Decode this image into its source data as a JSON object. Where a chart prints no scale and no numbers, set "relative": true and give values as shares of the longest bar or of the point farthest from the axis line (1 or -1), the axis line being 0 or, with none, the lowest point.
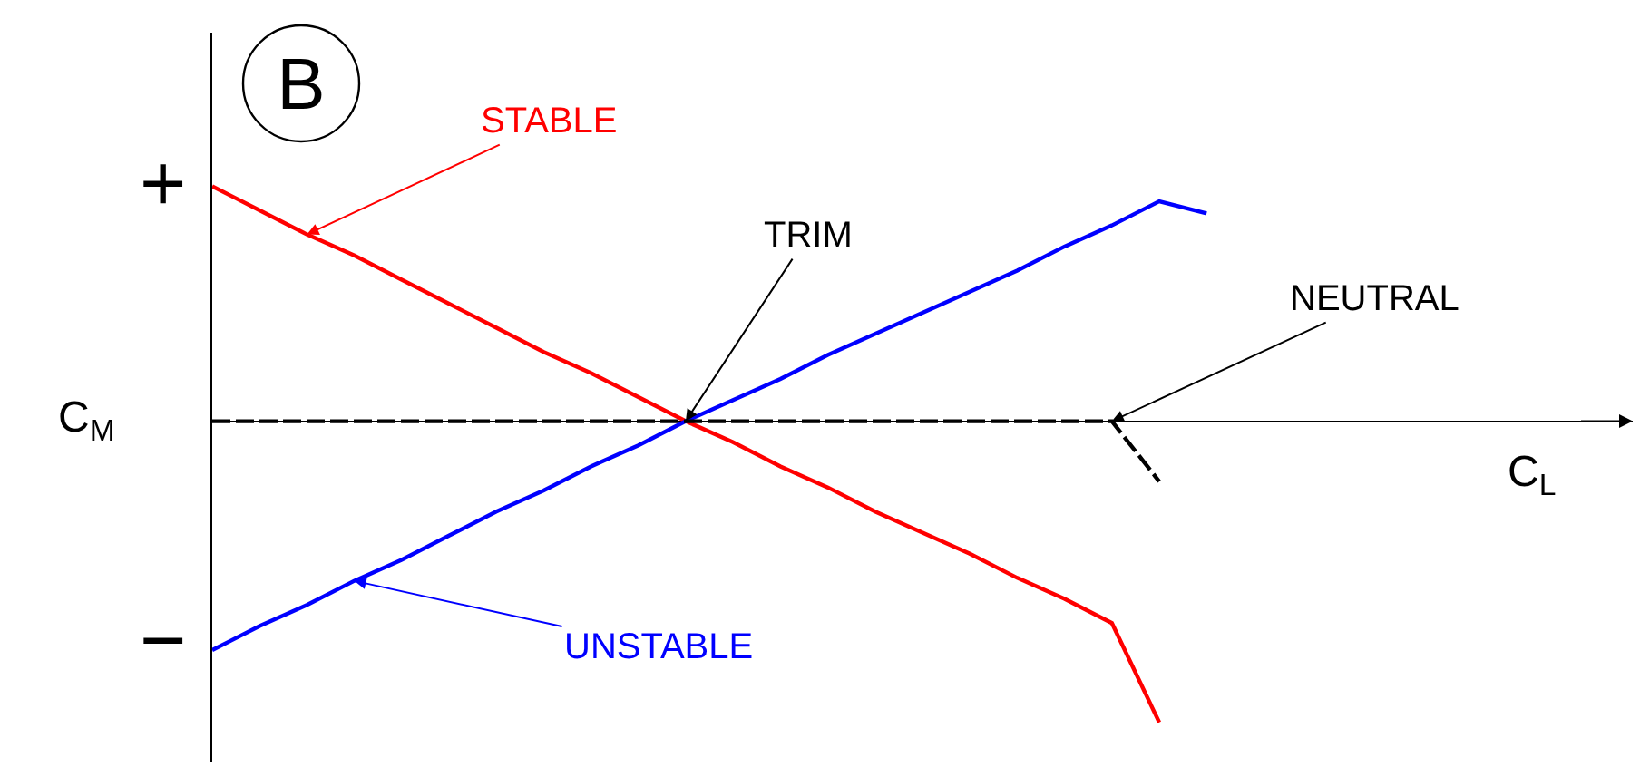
{
  "chart_data": {
    "type": "line",
    "title": "B",
    "ylabel": "C$_{M}$",
    "relative": true,
    "marker": "none",
    "categories": [
      null,
      null,
      null,
      null,
      null,
      null,
      null,
      null,
      null,
      null,
      null,
      null,
      null,
      null,
      null,
      null,
      null,
      null,
      null,
      null,
      null,
      null
    ],
    "series": [
      {
        "color": "#ff0000",
        "values": [
          0.78,
          0.7,
          0.62,
          0.55,
          0.47,
          0.39,
          0.31,
          0.23,
          0.16,
          0.08,
          0,
          -0.07,
          -0.15,
          -0.22,
          -0.3,
          -0.37,
          -0.44,
          -0.52,
          -0.59,
          -0.67,
          -1,
          null
        ]
      },
      {
        "color": "#0000ff",
        "values": [
          -0.76,
          -0.68,
          -0.61,
          -0.53,
          -0.46,
          -0.38,
          -0.3,
          -0.23,
          -0.15,
          -0.08,
          0,
          0.07,
          0.14,
          0.22,
          0.29,
          0.36,
          0.43,
          0.5,
          0.58,
          0.65,
          0.73,
          0.69
        ]
      },
      {
        "color": "#000000",
        "line_style": "dashed",
        "values": [
          0,
          0,
          0,
          0,
          0,
          0,
          0,
          0,
          0,
          0,
          0,
          0,
          0,
          0,
          0,
          0,
          0,
          0,
          0,
          0,
          -0.2,
          null
        ]
      }
    ],
    "annotations": [
      "STABLE",
      "UNSTABLE",
      "TRIM",
      "NEUTRAL",
      "+",
      "−",
      "C$_{L}$"
    ]
  }
}
